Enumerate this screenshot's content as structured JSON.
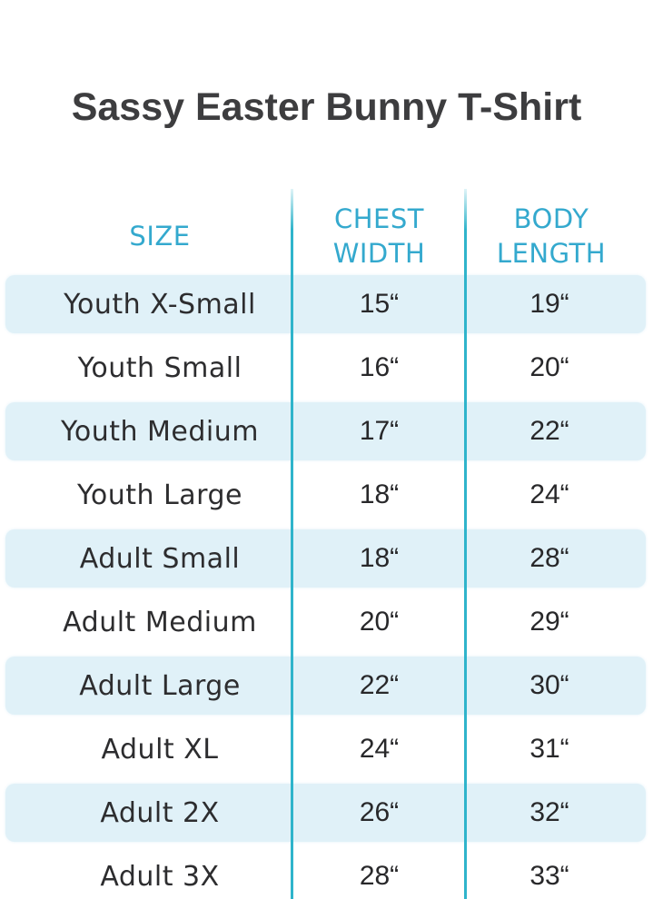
{
  "page": {
    "title": "Sassy Easter Bunny T-Shirt"
  },
  "chart_data": {
    "type": "table",
    "title": "Sassy Easter Bunny T-Shirt",
    "columns": [
      "SIZE",
      "CHEST WIDTH",
      "BODY LENGTH"
    ],
    "rows": [
      [
        "Youth X-Small",
        "15“",
        "19“"
      ],
      [
        "Youth Small",
        "16“",
        "20“"
      ],
      [
        "Youth Medium",
        "17“",
        "22“"
      ],
      [
        "Youth Large",
        "18“",
        "24“"
      ],
      [
        "Adult Small",
        "18“",
        "28“"
      ],
      [
        "Adult Medium",
        "20“",
        "29“"
      ],
      [
        "Adult Large",
        "22“",
        "30“"
      ],
      [
        "Adult XL",
        "24“",
        "31“"
      ],
      [
        "Adult 2X",
        "26“",
        "32“"
      ],
      [
        "Adult 3X",
        "28“",
        "33“"
      ]
    ],
    "layout": {
      "striped_row_indices": [
        0,
        2,
        4,
        6,
        8
      ],
      "units": "inches"
    }
  },
  "colors": {
    "title_text": "#3d3d3f",
    "header_text": "#34a9ce",
    "divider": "#2fb4cb",
    "row_stripe": "#e0f1f8",
    "body_text": "#2d2d2f"
  }
}
